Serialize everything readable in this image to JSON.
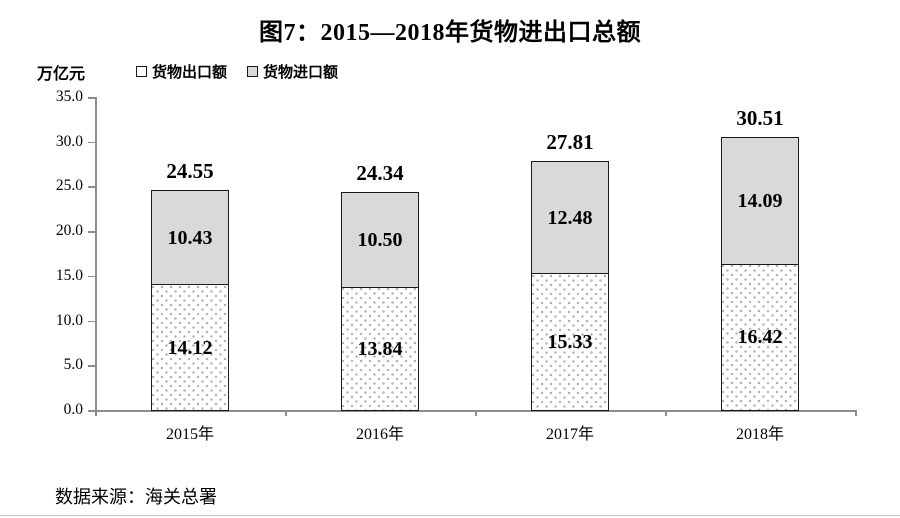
{
  "title": "图7：2015—2018年货物进出口总额",
  "y_unit_label": "万亿元",
  "legend": {
    "items": [
      {
        "label": "货物出口额",
        "swatch": "dotted-white-square-icon"
      },
      {
        "label": "货物进口额",
        "swatch": "gray-square-icon"
      }
    ]
  },
  "source": "数据来源：海关总署",
  "colors": {
    "import_fill": "#d9d9d9",
    "export_dot": "#b3b3b3",
    "bar_border": "#1a1a1a",
    "axis": "#8c8c8c",
    "text": "#000000"
  },
  "chart_data": {
    "type": "bar",
    "stacked": true,
    "title": "图7：2015—2018年货物进出口总额",
    "ylabel": "万亿元",
    "categories": [
      "2015年",
      "2016年",
      "2017年",
      "2018年"
    ],
    "series": [
      {
        "name": "货物出口额",
        "values": [
          14.12,
          13.84,
          15.33,
          16.42
        ]
      },
      {
        "name": "货物进口额",
        "values": [
          10.43,
          10.5,
          12.48,
          14.09
        ]
      }
    ],
    "totals": [
      24.55,
      24.34,
      27.81,
      30.51
    ],
    "ylim": [
      0,
      35
    ],
    "ytick_step": 5,
    "ytick_labels": [
      "0.0",
      "5.0",
      "10.0",
      "15.0",
      "20.0",
      "25.0",
      "30.0",
      "35.0"
    ],
    "grid": false,
    "legend_position": "top-left",
    "value_label_decimals": 2
  }
}
